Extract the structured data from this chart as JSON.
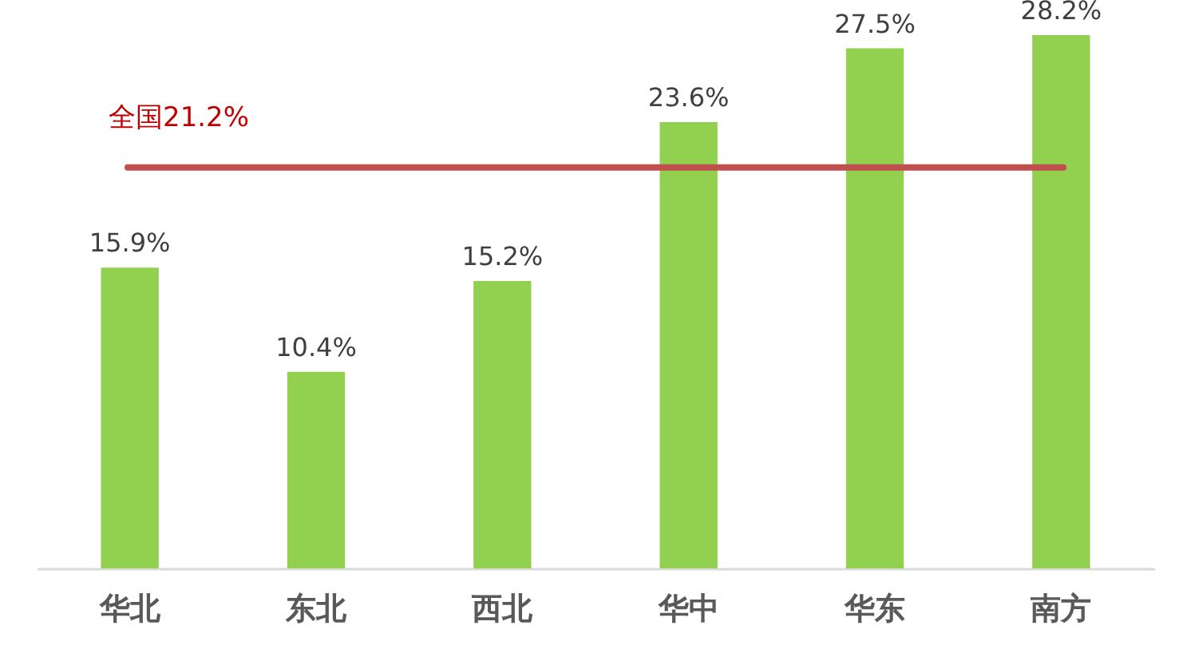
{
  "chart_data": {
    "type": "bar",
    "categories": [
      "华北",
      "东北",
      "西北",
      "华中",
      "华东",
      "南方"
    ],
    "values": [
      15.9,
      10.4,
      15.2,
      23.6,
      27.5,
      28.2
    ],
    "color": "#92d050",
    "value_labels": [
      "15.9%",
      "10.4%",
      "15.2%",
      "23.6%",
      "27.5%",
      "28.2%"
    ],
    "ref_lines": [
      {
        "axis": "y",
        "value": 21.2,
        "label": "全国21.2%",
        "color": "#c0504d"
      }
    ],
    "tick_labels": "x"
  }
}
